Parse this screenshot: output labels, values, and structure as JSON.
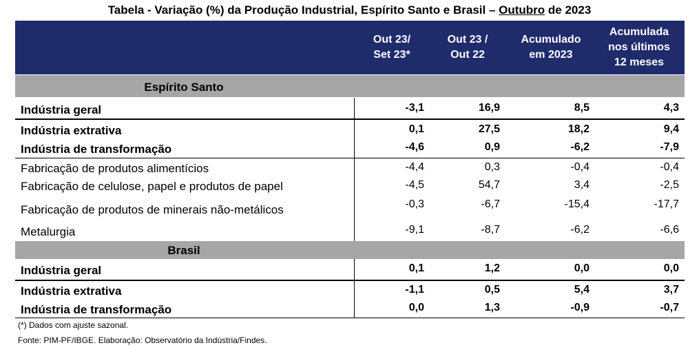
{
  "title": {
    "prefix": "Tabela - Variação (%) da Produção Industrial, Espírito Santo e Brasil – ",
    "month": "Outubro",
    "suffix": " de 2023"
  },
  "columns": [
    "Out 23/\nSet 23*",
    "Out 23 /\nOut 22",
    "Acumulado\nem 2023",
    "Acumulada\nnos últimos\n12 meses"
  ],
  "sections": [
    {
      "name": "Espírito Santo",
      "rows": [
        {
          "label": "Indústria geral",
          "bold": true,
          "values": [
            "-3,1",
            "16,9",
            "8,5",
            "4,3"
          ]
        },
        {
          "label": "Indústria extrativa",
          "bold": true,
          "values": [
            "0,1",
            "27,5",
            "18,2",
            "9,4"
          ]
        },
        {
          "label": "Indústria de transformação",
          "bold": true,
          "values": [
            "-4,6",
            "0,9",
            "-6,2",
            "-7,9"
          ]
        },
        {
          "label": "Fabricação de produtos alimentícios",
          "bold": false,
          "values": [
            "-4,4",
            "0,3",
            "-0,4",
            "-0,4"
          ]
        },
        {
          "label": "Fabricação de celulose, papel e produtos de papel",
          "bold": false,
          "values": [
            "-4,5",
            "54,7",
            "3,4",
            "-2,5"
          ]
        },
        {
          "label": "Fabricação de produtos de minerais não-metálicos",
          "bold": false,
          "values": [
            "-0,3",
            "-6,7",
            "-15,4",
            "-17,7"
          ]
        },
        {
          "label": "Metalurgia",
          "bold": false,
          "values": [
            "-9,1",
            "-8,7",
            "-6,2",
            "-6,6"
          ]
        }
      ]
    },
    {
      "name": "Brasil",
      "rows": [
        {
          "label": "Indústria geral",
          "bold": true,
          "values": [
            "0,1",
            "1,2",
            "0,0",
            "0,0"
          ]
        },
        {
          "label": "Indústria extrativa",
          "bold": true,
          "values": [
            "-1,1",
            "0,5",
            "5,4",
            "3,7"
          ]
        },
        {
          "label": "Indústria de transformação",
          "bold": true,
          "values": [
            "0,0",
            "1,3",
            "-0,9",
            "-0,7"
          ]
        }
      ]
    }
  ],
  "footnotes": [
    "(*) Dados com ajuste sazonal.",
    "Fonte: PIM-PF/IBGE. Elaboração: Observatório da Indústria/Findes."
  ]
}
